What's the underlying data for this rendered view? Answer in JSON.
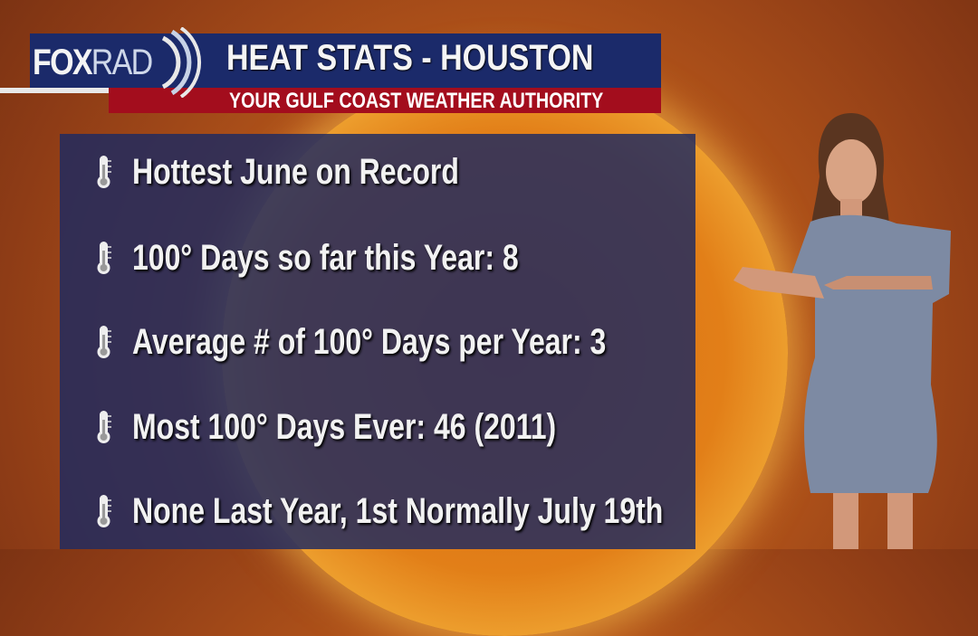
{
  "header": {
    "logo_text": "FOXRAD",
    "logo_fox": "FOX",
    "logo_rad": "RAD",
    "title": "HEAT STATS - HOUSTON",
    "subtitle": "YOUR GULF COAST WEATHER AUTHORITY"
  },
  "stats": {
    "icon": "thermometer-icon",
    "items": [
      {
        "label": "Hottest June on Record"
      },
      {
        "label": "100° Days so far this Year: 8"
      },
      {
        "label": "Average # of 100° Days per Year: 3"
      },
      {
        "label": "Most 100° Days Ever: 46 (2011)"
      },
      {
        "label": "None Last Year, 1st Normally July 19th"
      }
    ]
  },
  "colors": {
    "header_blue": "#1b2a6a",
    "header_red": "#a30d1d",
    "panel": "#1c2a62",
    "background": "#b2541a"
  }
}
